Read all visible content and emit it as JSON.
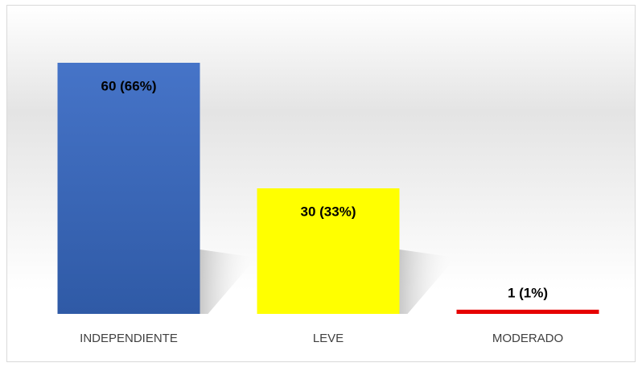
{
  "chart_data": {
    "type": "bar",
    "categories": [
      "INDEPENDIENTE",
      "LEVE",
      "MODERADO"
    ],
    "values": [
      60,
      30,
      1
    ],
    "value_labels": [
      "60 (66%)",
      "30 (33%)",
      "1 (1%)"
    ],
    "colors": [
      "#3d6ab8",
      "#ffff00",
      "#e60000"
    ]
  }
}
